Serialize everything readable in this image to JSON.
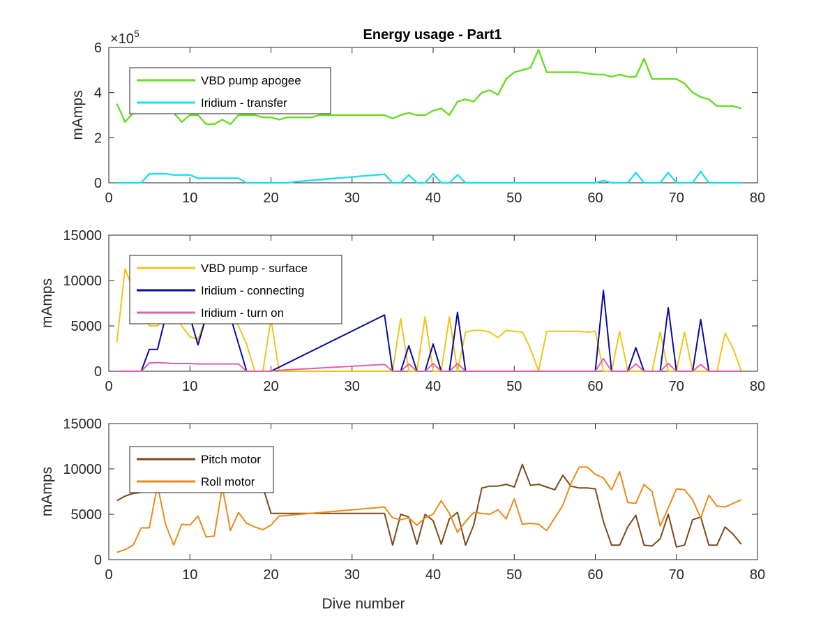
{
  "figure_title": "Energy usage - Part1",
  "chart_data": [
    {
      "type": "line",
      "title": "Energy usage - Part1",
      "ylabel": "mAmps",
      "xlabel": "",
      "exponent_label": "×10",
      "exponent_power": "5",
      "xlim": [
        0,
        80
      ],
      "ylim": [
        0,
        600000
      ],
      "xticks": [
        0,
        10,
        20,
        30,
        40,
        50,
        60,
        70,
        80
      ],
      "yticks": [
        0,
        200000,
        400000,
        600000
      ],
      "ytick_labels": [
        "0",
        "2",
        "4",
        "6"
      ],
      "legend_position": "upper-left",
      "series": [
        {
          "name": "VBD pump apogee",
          "color": "#66dd22",
          "x": [
            1,
            2,
            3,
            4,
            5,
            6,
            7,
            8,
            9,
            10,
            11,
            12,
            13,
            14,
            15,
            16,
            17,
            18,
            19,
            20,
            21,
            22,
            23,
            24,
            25,
            26,
            27,
            28,
            29,
            30,
            31,
            32,
            33,
            34,
            35,
            36,
            37,
            38,
            39,
            40,
            41,
            42,
            43,
            44,
            45,
            46,
            47,
            48,
            49,
            50,
            51,
            52,
            53,
            54,
            55,
            56,
            57,
            58,
            59,
            60,
            61,
            62,
            63,
            64,
            65,
            66,
            67,
            68,
            69,
            70,
            71,
            72,
            73,
            74,
            75,
            76,
            77,
            78
          ],
          "y": [
            350000,
            270000,
            310000,
            330000,
            320000,
            320000,
            330000,
            310000,
            270000,
            300000,
            300000,
            260000,
            260000,
            280000,
            260000,
            300000,
            300000,
            300000,
            290000,
            290000,
            280000,
            290000,
            290000,
            290000,
            290000,
            300000,
            300000,
            300000,
            300000,
            300000,
            300000,
            300000,
            300000,
            300000,
            285000,
            300000,
            310000,
            300000,
            300000,
            320000,
            330000,
            300000,
            360000,
            370000,
            360000,
            400000,
            410000,
            390000,
            460000,
            490000,
            500000,
            510000,
            590000,
            490000,
            490000,
            490000,
            490000,
            490000,
            485000,
            480000,
            480000,
            470000,
            480000,
            470000,
            470000,
            550000,
            460000,
            460000,
            460000,
            460000,
            440000,
            400000,
            380000,
            370000,
            340000,
            340000,
            340000,
            330000
          ]
        },
        {
          "name": "Iridium - transfer",
          "color": "#22ddee",
          "x": [
            1,
            2,
            3,
            4,
            5,
            6,
            7,
            8,
            9,
            10,
            11,
            12,
            13,
            14,
            15,
            16,
            17,
            18,
            19,
            20,
            21,
            22,
            23,
            24,
            25,
            26,
            27,
            28,
            29,
            30,
            31,
            32,
            33,
            34,
            35,
            36,
            37,
            38,
            39,
            40,
            41,
            42,
            43,
            44,
            45,
            46,
            47,
            48,
            49,
            50,
            51,
            52,
            53,
            54,
            55,
            56,
            57,
            58,
            59,
            60,
            61,
            62,
            63,
            64,
            65,
            66,
            67,
            68,
            69,
            70,
            71,
            72,
            73,
            74,
            75,
            76,
            77,
            78
          ],
          "y": [
            0,
            0,
            0,
            0,
            40000,
            40000,
            40000,
            35000,
            35000,
            35000,
            20000,
            20000,
            20000,
            20000,
            20000,
            20000,
            0,
            0,
            0,
            0,
            0,
            0,
            5000,
            8000,
            11000,
            14000,
            17000,
            20000,
            23000,
            26000,
            29000,
            32000,
            35000,
            38000,
            0,
            0,
            35000,
            0,
            0,
            40000,
            0,
            0,
            35000,
            0,
            0,
            0,
            0,
            0,
            0,
            0,
            0,
            0,
            0,
            0,
            0,
            0,
            0,
            0,
            0,
            0,
            10000,
            0,
            0,
            0,
            45000,
            0,
            0,
            0,
            45000,
            0,
            0,
            0,
            50000,
            0,
            0,
            0,
            0,
            0
          ]
        }
      ]
    },
    {
      "type": "line",
      "title": "",
      "ylabel": "mAmps",
      "xlabel": "",
      "xlim": [
        0,
        80
      ],
      "ylim": [
        0,
        15000
      ],
      "xticks": [
        0,
        10,
        20,
        30,
        40,
        50,
        60,
        70,
        80
      ],
      "yticks": [
        0,
        5000,
        10000,
        15000
      ],
      "ytick_labels": [
        "0",
        "5000",
        "10000",
        "15000"
      ],
      "legend_position": "upper-left",
      "series": [
        {
          "name": "VBD pump - surface",
          "color": "#f2c418",
          "x": [
            1,
            2,
            3,
            4,
            5,
            6,
            7,
            8,
            9,
            10,
            11,
            12,
            13,
            14,
            15,
            16,
            17,
            18,
            19,
            20,
            21,
            22,
            23,
            24,
            25,
            26,
            27,
            28,
            29,
            30,
            31,
            32,
            33,
            34,
            35,
            36,
            37,
            38,
            39,
            40,
            41,
            42,
            43,
            44,
            45,
            46,
            47,
            48,
            49,
            50,
            51,
            52,
            53,
            54,
            55,
            56,
            57,
            58,
            59,
            60,
            61,
            62,
            63,
            64,
            65,
            66,
            67,
            68,
            69,
            70,
            71,
            72,
            73,
            74,
            75,
            76,
            77,
            78
          ],
          "y": [
            3200,
            11300,
            9000,
            6500,
            5000,
            5000,
            6000,
            6000,
            5000,
            3800,
            3500,
            6000,
            6500,
            6500,
            6000,
            5000,
            3000,
            0,
            0,
            5800,
            0,
            0,
            0,
            0,
            0,
            0,
            0,
            0,
            0,
            0,
            0,
            0,
            0,
            0,
            0,
            5800,
            0,
            0,
            6000,
            0,
            0,
            6000,
            0,
            4300,
            4500,
            4500,
            4300,
            3700,
            4500,
            4400,
            4300,
            2500,
            0,
            4400,
            4400,
            4400,
            4400,
            4400,
            4300,
            4400,
            0,
            0,
            4400,
            0,
            0,
            0,
            0,
            4300,
            0,
            0,
            4300,
            0,
            0,
            0,
            0,
            4200,
            2500,
            0
          ]
        },
        {
          "name": "Iridium - connecting",
          "color": "#0a0aa0",
          "x": [
            1,
            2,
            3,
            4,
            5,
            6,
            7,
            8,
            9,
            10,
            11,
            12,
            13,
            14,
            15,
            16,
            17,
            18,
            19,
            20,
            34,
            35,
            36,
            37,
            38,
            39,
            40,
            41,
            42,
            43,
            44,
            45,
            46,
            47,
            48,
            49,
            50,
            51,
            52,
            53,
            54,
            55,
            56,
            57,
            58,
            59,
            60,
            61,
            62,
            63,
            64,
            65,
            66,
            67,
            68,
            69,
            70,
            71,
            72,
            73,
            74,
            75,
            76,
            77,
            78
          ],
          "y": [
            0,
            0,
            0,
            0,
            2400,
            2400,
            6000,
            6000,
            6000,
            6000,
            2900,
            6000,
            6000,
            6000,
            6000,
            3000,
            0,
            0,
            0,
            0,
            6200,
            0,
            0,
            2800,
            0,
            0,
            3000,
            0,
            0,
            6500,
            0,
            0,
            0,
            0,
            0,
            0,
            0,
            0,
            0,
            0,
            0,
            0,
            0,
            0,
            0,
            0,
            0,
            8900,
            0,
            0,
            0,
            2600,
            0,
            0,
            0,
            7000,
            0,
            0,
            0,
            5700,
            0,
            0,
            0,
            0,
            0
          ]
        },
        {
          "name": "Iridium - turn on",
          "color": "#e060b0",
          "x": [
            1,
            2,
            3,
            4,
            5,
            6,
            7,
            8,
            9,
            10,
            11,
            12,
            13,
            14,
            15,
            16,
            17,
            18,
            19,
            20,
            21,
            22,
            23,
            24,
            25,
            26,
            27,
            28,
            29,
            30,
            31,
            32,
            33,
            34,
            35,
            36,
            37,
            38,
            39,
            40,
            41,
            42,
            43,
            44,
            45,
            46,
            47,
            48,
            49,
            50,
            51,
            52,
            53,
            54,
            55,
            56,
            57,
            58,
            59,
            60,
            61,
            62,
            63,
            64,
            65,
            66,
            67,
            68,
            69,
            70,
            71,
            72,
            73,
            74,
            75,
            76,
            77,
            78
          ],
          "y": [
            0,
            0,
            0,
            0,
            900,
            950,
            900,
            850,
            850,
            850,
            800,
            800,
            800,
            800,
            800,
            800,
            0,
            0,
            0,
            0,
            100,
            150,
            200,
            250,
            300,
            350,
            400,
            450,
            500,
            550,
            600,
            650,
            700,
            750,
            0,
            0,
            800,
            0,
            0,
            850,
            0,
            0,
            850,
            0,
            0,
            0,
            0,
            0,
            0,
            0,
            0,
            0,
            0,
            0,
            0,
            0,
            0,
            0,
            0,
            0,
            1400,
            0,
            0,
            0,
            800,
            0,
            0,
            0,
            850,
            0,
            0,
            0,
            750,
            0,
            0,
            0,
            0,
            0
          ]
        }
      ]
    },
    {
      "type": "line",
      "title": "",
      "ylabel": "mAmps",
      "xlabel": "Dive number",
      "xlim": [
        0,
        80
      ],
      "ylim": [
        0,
        15000
      ],
      "xticks": [
        0,
        10,
        20,
        30,
        40,
        50,
        60,
        70,
        80
      ],
      "yticks": [
        0,
        5000,
        10000,
        15000
      ],
      "ytick_labels": [
        "0",
        "5000",
        "10000",
        "15000"
      ],
      "legend_position": "upper-left",
      "series": [
        {
          "name": "Pitch motor",
          "color": "#7a4a1a",
          "x": [
            1,
            2,
            3,
            4,
            5,
            6,
            7,
            8,
            9,
            10,
            11,
            12,
            13,
            14,
            15,
            16,
            17,
            18,
            19,
            20,
            21,
            34,
            35,
            36,
            37,
            38,
            39,
            40,
            41,
            42,
            43,
            44,
            45,
            46,
            47,
            48,
            49,
            50,
            51,
            52,
            53,
            54,
            55,
            56,
            57,
            58,
            59,
            60,
            61,
            62,
            63,
            64,
            65,
            66,
            67,
            68,
            69,
            70,
            71,
            72,
            73,
            74,
            75,
            76,
            77,
            78
          ],
          "y": [
            6500,
            7000,
            7300,
            7400,
            7500,
            7500,
            7600,
            7700,
            7700,
            7800,
            7800,
            7800,
            7900,
            7900,
            8000,
            8000,
            8000,
            8000,
            8000,
            5100,
            5100,
            5100,
            1600,
            5000,
            4700,
            1700,
            5000,
            4300,
            1700,
            4500,
            5200,
            1600,
            3800,
            7900,
            8100,
            8100,
            8300,
            8000,
            10500,
            8200,
            8300,
            8000,
            7700,
            9300,
            8100,
            7900,
            7900,
            7800,
            4200,
            1600,
            1600,
            3600,
            4900,
            1600,
            1500,
            2300,
            5000,
            1400,
            1600,
            4400,
            4700,
            1600,
            1600,
            3600,
            2800,
            1700
          ]
        },
        {
          "name": "Roll motor",
          "color": "#ea8a1a",
          "x": [
            1,
            2,
            3,
            4,
            5,
            6,
            7,
            8,
            9,
            10,
            11,
            12,
            13,
            14,
            15,
            16,
            17,
            18,
            19,
            20,
            21,
            34,
            35,
            36,
            37,
            38,
            39,
            40,
            41,
            42,
            43,
            44,
            45,
            46,
            47,
            48,
            49,
            50,
            51,
            52,
            53,
            54,
            55,
            56,
            57,
            58,
            59,
            60,
            61,
            62,
            63,
            64,
            65,
            66,
            67,
            68,
            69,
            70,
            71,
            72,
            73,
            74,
            75,
            76,
            77,
            78
          ],
          "y": [
            800,
            1100,
            1600,
            3500,
            3500,
            8200,
            3900,
            1600,
            3900,
            3800,
            4800,
            2500,
            2600,
            8000,
            3200,
            5200,
            4000,
            3600,
            3300,
            3800,
            4800,
            5800,
            4600,
            4400,
            4600,
            3800,
            4600,
            5000,
            6500,
            5100,
            3000,
            4200,
            5200,
            5100,
            5000,
            5500,
            4500,
            6700,
            3900,
            4000,
            3900,
            3200,
            4600,
            6000,
            8400,
            10200,
            10200,
            9400,
            9000,
            7700,
            9700,
            6300,
            6200,
            8300,
            7500,
            3700,
            5700,
            7800,
            7700,
            6600,
            4600,
            7100,
            5900,
            5800,
            6200,
            6600
          ]
        }
      ]
    }
  ]
}
